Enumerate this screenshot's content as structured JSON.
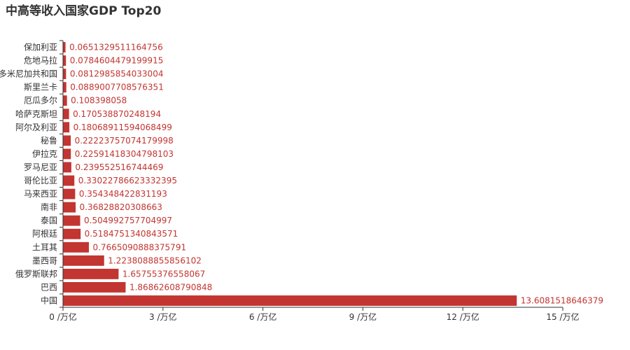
{
  "chart_data": {
    "type": "bar",
    "orientation": "horizontal",
    "title": "中高等收入国家GDP Top20",
    "xlabel": "",
    "ylabel": "",
    "xlim": [
      0,
      15
    ],
    "x_ticks": [
      "0 /万亿",
      "3 /万亿",
      "6 /万亿",
      "9 /万亿",
      "12 /万亿",
      "15 /万亿"
    ],
    "grid": false,
    "legend": "none",
    "bar_color": "#c23531",
    "categories": [
      "中国",
      "巴西",
      "俄罗斯联邦",
      "墨西哥",
      "土耳其",
      "阿根廷",
      "泰国",
      "南非",
      "马来西亚",
      "哥伦比亚",
      "罗马尼亚",
      "伊拉克",
      "秘鲁",
      "阿尔及利亚",
      "哈萨克斯坦",
      "厄瓜多尔",
      "斯里兰卡",
      "多米尼加共和国",
      "危地马拉",
      "保加利亚"
    ],
    "values": [
      13.6081518646379,
      1.86862608790848,
      1.65755376558067,
      1.2238088855856102,
      0.7665090888375791,
      0.5184751340843571,
      0.504992757704997,
      0.36828820308663,
      0.354348422831193,
      0.33022786623332395,
      0.239552516744469,
      0.22591418304798103,
      0.22223757074179998,
      0.18068911594068499,
      0.170538870248194,
      0.108398058,
      0.0889007708576351,
      0.0812985854033004,
      0.0784604479199915,
      0.0651329511164756
    ],
    "value_labels": [
      "13.6081518646379",
      "1.86862608790848",
      "1.65755376558067",
      "1.2238088855856102",
      "0.7665090888375791",
      "0.5184751340843571",
      "0.504992757704997",
      "0.36828820308663",
      "0.354348422831193",
      "0.33022786623332395",
      "0.239552516744469",
      "0.22591418304798103",
      "0.22223757074179998",
      "0.18068911594068499",
      "0.170538870248194",
      "0.108398058",
      "0.0889007708576351",
      "0.0812985854033004",
      "0.0784604479199915",
      "0.0651329511164756"
    ]
  }
}
